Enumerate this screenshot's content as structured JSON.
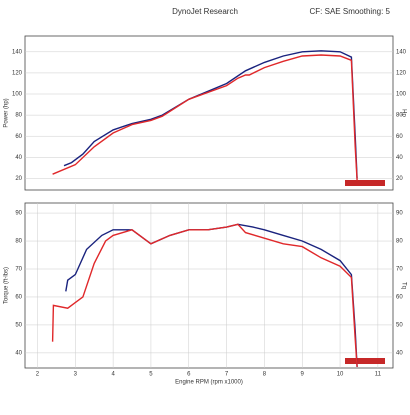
{
  "header": {
    "title": "DynoJet Research",
    "note": "CF: SAE Smoothing: 5"
  },
  "chart_data": [
    {
      "type": "line",
      "ylabel": "Power (hp)",
      "y2label": "Hp",
      "xlim": [
        1.67,
        11.4
      ],
      "ylim": [
        9,
        155
      ],
      "yticks": [
        20,
        40,
        60,
        80,
        100,
        120,
        140
      ],
      "series": [
        {
          "color": "#1a237e",
          "x": [
            2.7,
            2.9,
            3.2,
            3.5,
            4,
            4.5,
            5,
            5.3,
            6,
            7,
            7.5,
            8,
            8.5,
            9,
            9.5,
            10,
            10.3,
            10.4,
            10.45
          ],
          "values": [
            32,
            35,
            43,
            55,
            66,
            72,
            76,
            80,
            95,
            110,
            122,
            130,
            136,
            140,
            141,
            140,
            135,
            60,
            20
          ]
        },
        {
          "color": "#e0282a",
          "x": [
            2.4,
            3,
            3.5,
            4,
            4.5,
            5,
            5.3,
            6,
            7,
            7.3,
            7.5,
            7.6,
            8,
            8.5,
            9,
            9.5,
            10,
            10.3,
            10.4,
            10.45
          ],
          "values": [
            24,
            33,
            50,
            63,
            71,
            75,
            79,
            95,
            108,
            115,
            118,
            118,
            125,
            131,
            136,
            137,
            136,
            132,
            50,
            18
          ]
        }
      ]
    },
    {
      "type": "line",
      "ylabel": "Torque (ft-lbs)",
      "y2label": "Tq",
      "xlabel": "Engine RPM (rpm x1000)",
      "xlim": [
        1.67,
        11.4
      ],
      "xticks": [
        2,
        3,
        4,
        5,
        6,
        7,
        8,
        9,
        10,
        11
      ],
      "ylim": [
        34.6,
        93.6
      ],
      "yticks": [
        40,
        50,
        60,
        70,
        80,
        90
      ],
      "series": [
        {
          "color": "#1a237e",
          "x": [
            2.75,
            2.8,
            3,
            3.3,
            3.7,
            4,
            4.5,
            5,
            5.5,
            6,
            6.5,
            7,
            7.3,
            7.7,
            8,
            8.5,
            9,
            9.5,
            10,
            10.3,
            10.4,
            10.45
          ],
          "values": [
            62,
            66,
            68,
            77,
            82,
            84,
            84,
            79,
            82,
            84,
            84,
            85,
            86,
            85,
            84,
            82,
            80,
            77,
            73,
            68,
            48,
            35
          ]
        },
        {
          "color": "#e0282a",
          "x": [
            2.4,
            2.42,
            2.8,
            3,
            3.2,
            3.5,
            3.8,
            4,
            4.5,
            5,
            5.5,
            6,
            6.5,
            7,
            7.3,
            7.5,
            8,
            8.5,
            9,
            9.5,
            10,
            10.3,
            10.4,
            10.45
          ],
          "values": [
            44,
            57,
            56,
            58,
            60,
            72,
            80,
            82,
            84,
            79,
            82,
            84,
            84,
            85,
            86,
            83,
            81,
            79,
            78,
            74,
            71,
            67,
            45,
            35
          ]
        }
      ]
    }
  ]
}
